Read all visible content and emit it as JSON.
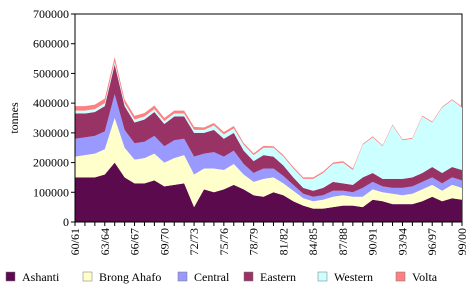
{
  "chart_data": {
    "type": "stacked-area",
    "y_label": "tonnes",
    "categories": [
      "60/61",
      null,
      null,
      "63/64",
      null,
      null,
      "66/67",
      null,
      null,
      "69/70",
      null,
      null,
      "72/73",
      null,
      null,
      "75/76",
      null,
      null,
      "78/79",
      null,
      null,
      "81/82",
      null,
      null,
      "84/85",
      null,
      null,
      "87/88",
      null,
      null,
      "90/91",
      null,
      null,
      "93/94",
      null,
      null,
      "96/97",
      null,
      null,
      "99/00"
    ],
    "series": [
      {
        "name": "Ashanti",
        "color": "#5c0a4e",
        "values": [
          150,
          150,
          150,
          160,
          200,
          150,
          130,
          130,
          140,
          120,
          125,
          130,
          50,
          110,
          100,
          110,
          125,
          110,
          90,
          85,
          100,
          90,
          70,
          55,
          45,
          45,
          50,
          55,
          55,
          50,
          75,
          70,
          60,
          60,
          60,
          70,
          85,
          70,
          80,
          75
        ]
      },
      {
        "name": "Brong Ahafo",
        "color": "#ffffcc",
        "values": [
          70,
          75,
          80,
          85,
          150,
          100,
          80,
          85,
          90,
          80,
          90,
          95,
          110,
          70,
          80,
          65,
          70,
          50,
          45,
          60,
          50,
          40,
          35,
          25,
          25,
          30,
          35,
          35,
          30,
          35,
          35,
          30,
          35,
          30,
          35,
          40,
          40,
          35,
          45,
          40
        ]
      },
      {
        "name": "Central",
        "color": "#9999ff",
        "values": [
          60,
          60,
          60,
          60,
          80,
          60,
          55,
          55,
          60,
          55,
          60,
          55,
          60,
          50,
          55,
          45,
          45,
          35,
          30,
          35,
          30,
          25,
          20,
          15,
          15,
          15,
          20,
          15,
          15,
          30,
          25,
          20,
          20,
          25,
          25,
          25,
          25,
          25,
          25,
          25
        ]
      },
      {
        "name": "Eastern",
        "color": "#993366",
        "values": [
          85,
          80,
          80,
          85,
          100,
          80,
          70,
          75,
          80,
          75,
          80,
          75,
          80,
          70,
          75,
          60,
          60,
          45,
          40,
          45,
          40,
          35,
          25,
          20,
          20,
          25,
          30,
          25,
          25,
          35,
          30,
          25,
          30,
          30,
          30,
          30,
          35,
          35,
          35,
          35
        ]
      },
      {
        "name": "Western",
        "color": "#ccffff",
        "values": [
          10,
          10,
          10,
          10,
          10,
          10,
          10,
          10,
          10,
          10,
          10,
          10,
          10,
          10,
          15,
          15,
          15,
          20,
          20,
          25,
          30,
          30,
          30,
          30,
          40,
          50,
          60,
          70,
          50,
          110,
          120,
          110,
          180,
          130,
          130,
          190,
          150,
          220,
          225,
          210
        ]
      },
      {
        "name": "Volta",
        "color": "#ff8080",
        "values": [
          15,
          15,
          15,
          15,
          15,
          12,
          12,
          12,
          12,
          10,
          10,
          10,
          10,
          8,
          8,
          8,
          8,
          6,
          6,
          6,
          5,
          5,
          5,
          5,
          5,
          5,
          5,
          5,
          5,
          3,
          3,
          3,
          3,
          3,
          3,
          3,
          3,
          3,
          3,
          3
        ]
      }
    ],
    "value_scale": 1000,
    "ylim": [
      0,
      700000
    ],
    "yticks": [
      0,
      100000,
      200000,
      300000,
      400000,
      500000,
      600000,
      700000
    ]
  }
}
